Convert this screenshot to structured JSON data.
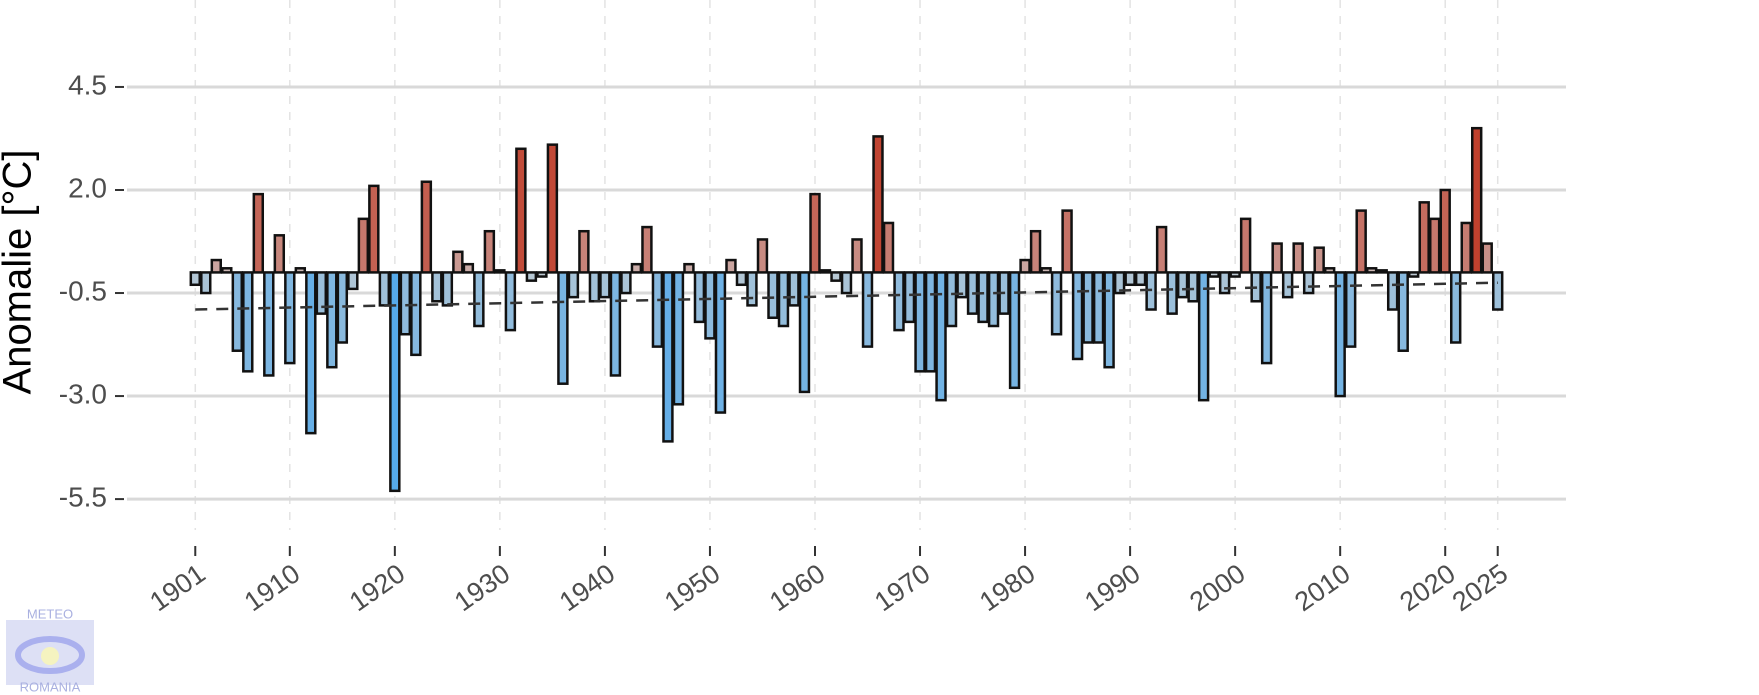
{
  "chart_data": {
    "type": "bar",
    "y_label": "Anomalie [°C]",
    "x": [
      1901,
      1902,
      1903,
      1904,
      1905,
      1906,
      1907,
      1908,
      1909,
      1910,
      1911,
      1912,
      1913,
      1914,
      1915,
      1916,
      1917,
      1918,
      1919,
      1920,
      1921,
      1922,
      1923,
      1924,
      1925,
      1926,
      1927,
      1928,
      1929,
      1930,
      1931,
      1932,
      1933,
      1934,
      1935,
      1936,
      1937,
      1938,
      1939,
      1940,
      1941,
      1942,
      1943,
      1944,
      1945,
      1946,
      1947,
      1948,
      1949,
      1950,
      1951,
      1952,
      1953,
      1954,
      1955,
      1956,
      1957,
      1958,
      1959,
      1960,
      1961,
      1962,
      1963,
      1964,
      1965,
      1966,
      1967,
      1968,
      1969,
      1970,
      1971,
      1972,
      1973,
      1974,
      1975,
      1976,
      1977,
      1978,
      1979,
      1980,
      1981,
      1982,
      1983,
      1984,
      1985,
      1986,
      1987,
      1988,
      1989,
      1990,
      1991,
      1992,
      1993,
      1994,
      1995,
      1996,
      1997,
      1998,
      1999,
      2000,
      2001,
      2002,
      2003,
      2004,
      2005,
      2006,
      2007,
      2008,
      2009,
      2010,
      2011,
      2012,
      2013,
      2014,
      2015,
      2016,
      2017,
      2018,
      2019,
      2020,
      2021,
      2022,
      2023,
      2024,
      2025
    ],
    "values": [
      -0.3,
      -0.5,
      0.3,
      0.1,
      -1.9,
      -2.4,
      1.9,
      -2.5,
      0.9,
      -2.2,
      0.1,
      -3.9,
      -1.0,
      -2.3,
      -1.7,
      -0.4,
      1.3,
      2.1,
      -0.8,
      -5.3,
      -1.5,
      -2.0,
      2.2,
      -0.7,
      -0.8,
      0.5,
      0.2,
      -1.3,
      1.0,
      0.05,
      -1.4,
      3.0,
      -0.2,
      -0.1,
      3.1,
      -2.7,
      -0.6,
      1.0,
      -0.7,
      -0.6,
      -2.5,
      -0.5,
      0.2,
      1.1,
      -1.8,
      -4.1,
      -3.2,
      0.2,
      -1.2,
      -1.6,
      -3.4,
      0.3,
      -0.3,
      -0.8,
      0.8,
      -1.1,
      -1.3,
      -0.8,
      -2.9,
      1.9,
      0.05,
      -0.2,
      -0.5,
      0.8,
      -1.8,
      3.3,
      1.2,
      -1.4,
      -1.2,
      -2.4,
      -2.4,
      -3.1,
      -1.3,
      -0.6,
      -1.0,
      -1.2,
      -1.3,
      -1.0,
      -2.8,
      0.3,
      1.0,
      0.1,
      -1.5,
      1.5,
      -2.1,
      -1.7,
      -1.7,
      -2.3,
      -0.5,
      -0.3,
      -0.3,
      -0.9,
      1.1,
      -1.0,
      -0.6,
      -0.7,
      -3.1,
      -0.1,
      -0.5,
      -0.1,
      1.3,
      -0.7,
      -2.2,
      0.7,
      -0.6,
      0.7,
      -0.5,
      0.6,
      0.1,
      -3.0,
      -1.8,
      1.5,
      0.1,
      0.05,
      -0.9,
      -1.9,
      -0.1,
      1.7,
      1.3,
      2.0,
      -1.7,
      1.2,
      3.5,
      0.7,
      -0.9
    ],
    "color_scale": {
      "negative": "#56aaea",
      "neutral": "#cfcfcf",
      "positive": "#c0412e"
    },
    "trend_line": {
      "x": [
        1901,
        2025
      ],
      "values": [
        -0.9,
        -0.25
      ]
    },
    "xlim": [
      1894.5,
      2031.5
    ],
    "xticks": [
      1901,
      1910,
      1920,
      1930,
      1940,
      1950,
      1960,
      1970,
      1980,
      1990,
      2000,
      2010,
      2020,
      2025
    ],
    "ylim": [
      -6.25,
      6.61
    ],
    "yticks": [
      4.5,
      {
        "value": 2,
        "label": "2.0"
      },
      -0.5,
      {
        "value": -3,
        "label": "-3.0"
      },
      -5.5
    ],
    "grid": true,
    "logo": {
      "top": "METEO",
      "bottom": "ROMANIA"
    }
  }
}
